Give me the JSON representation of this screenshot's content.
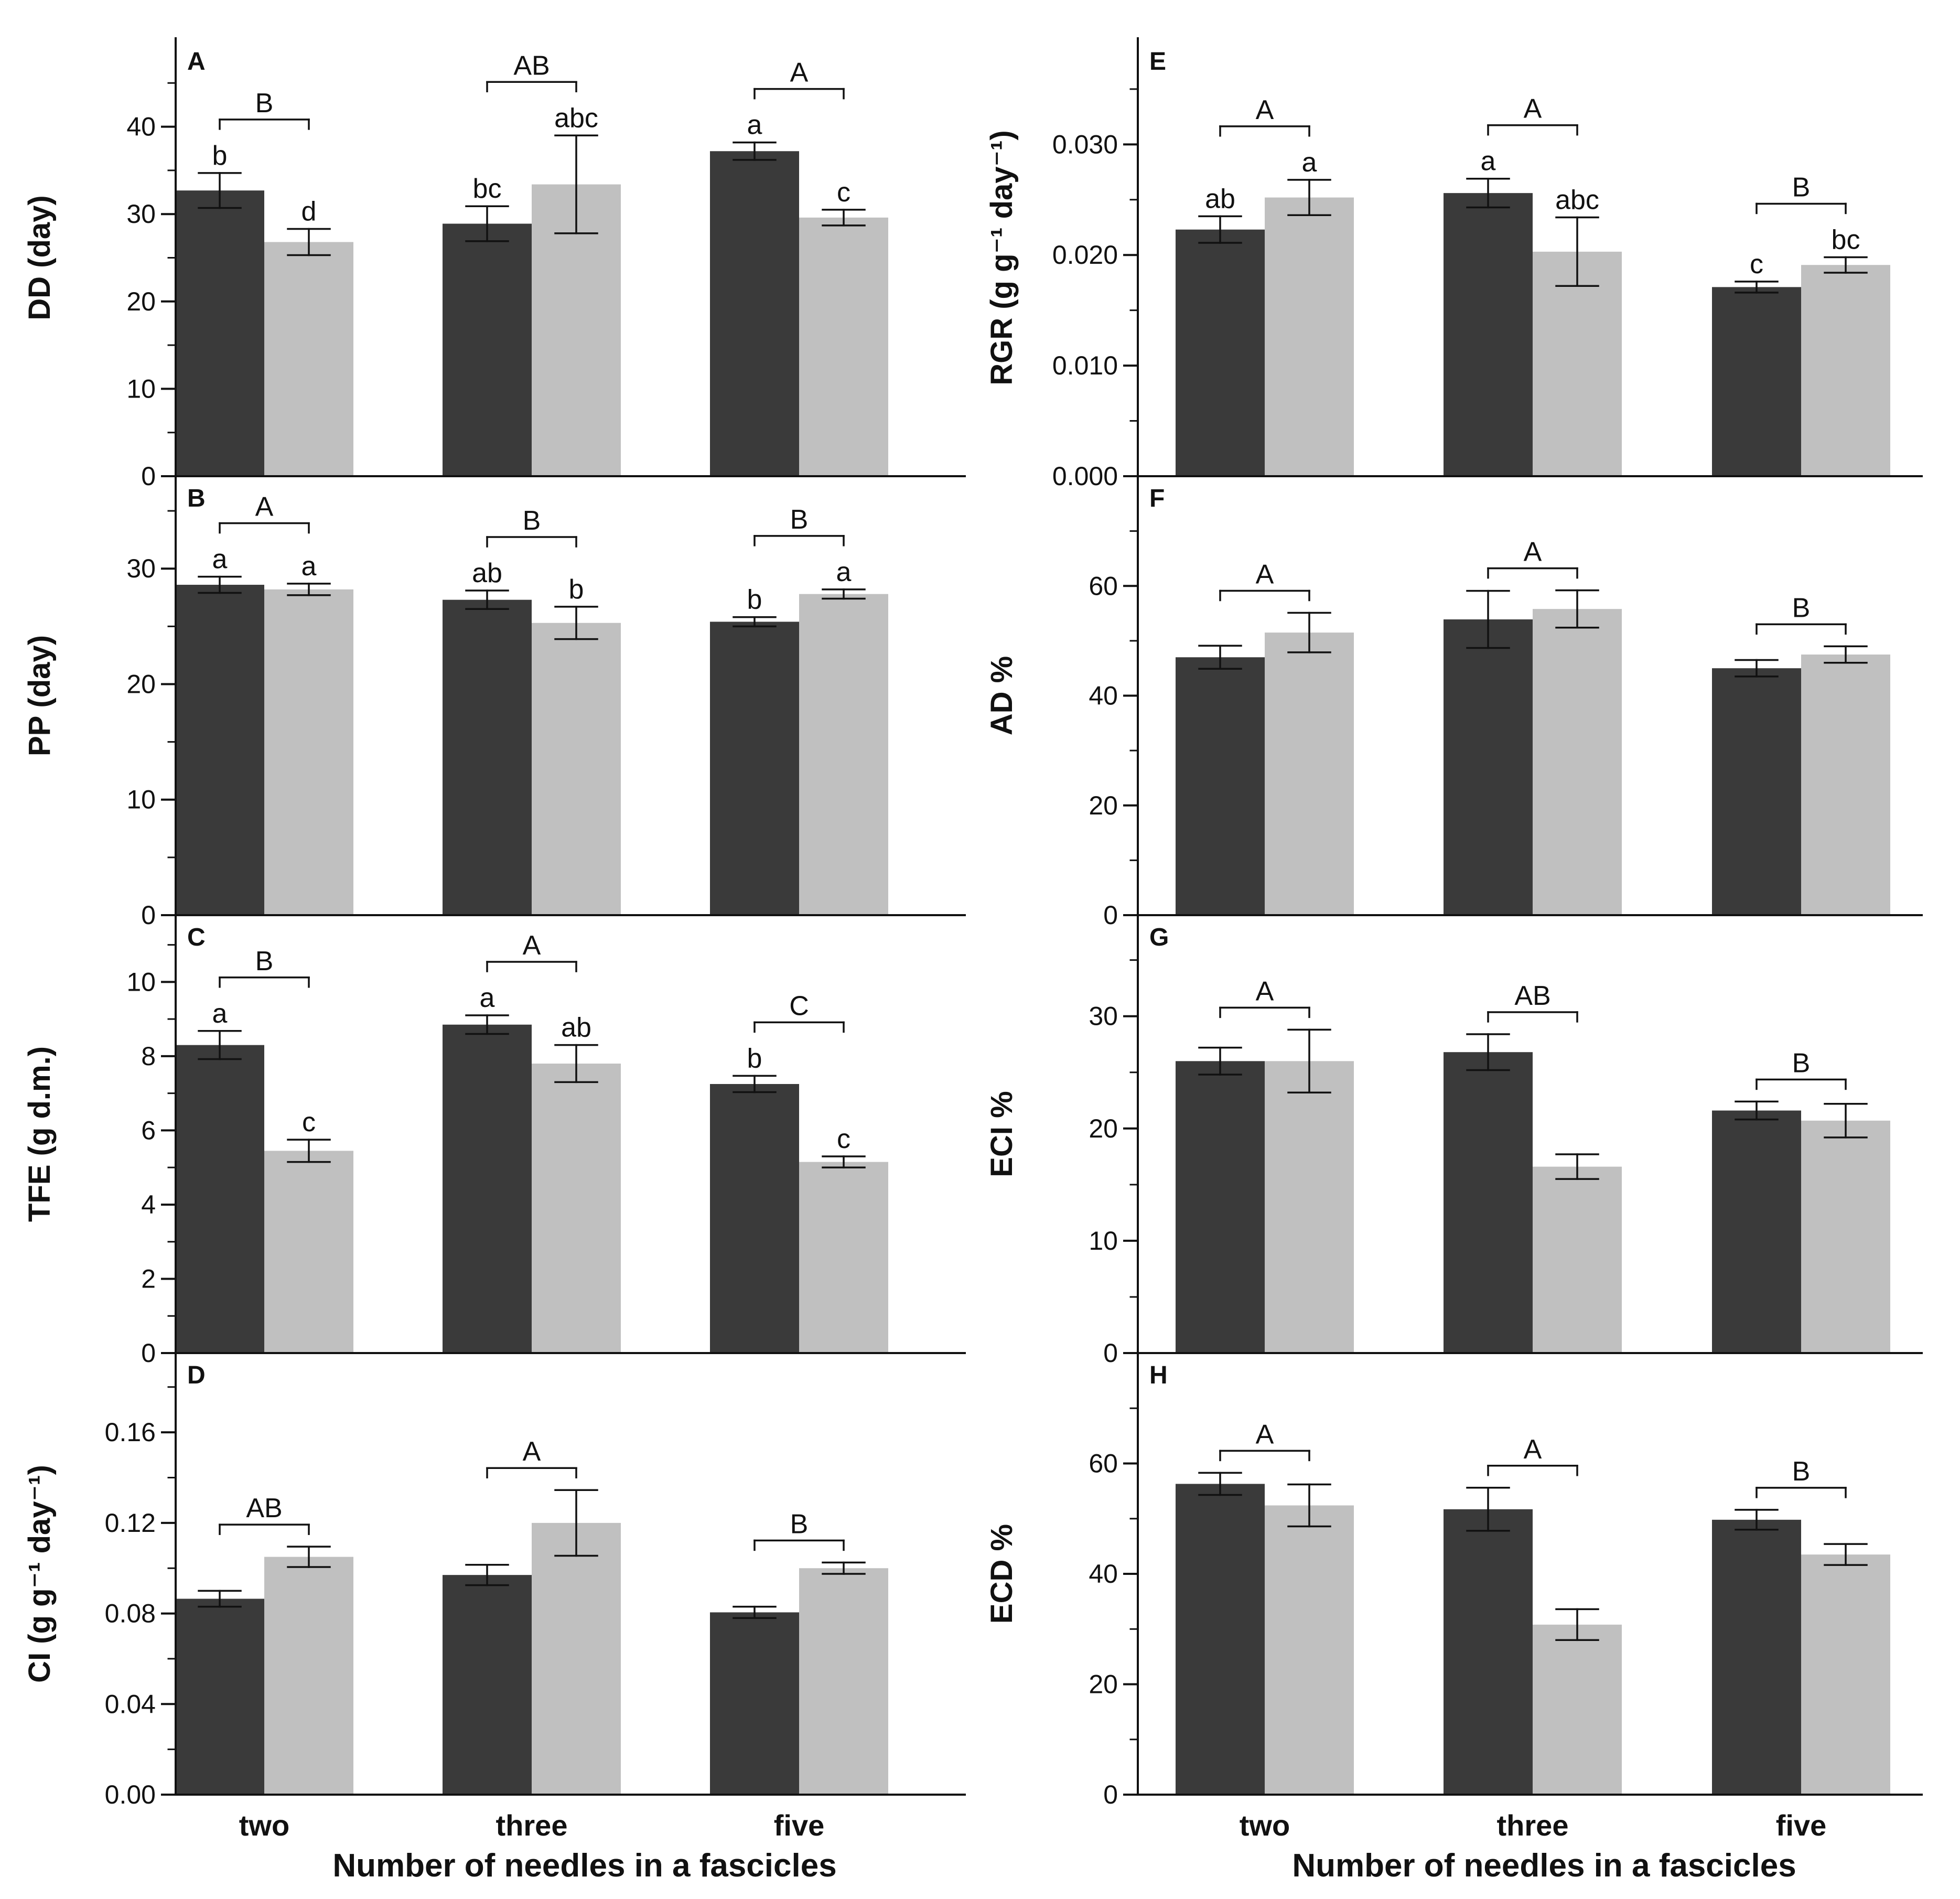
{
  "colors": {
    "series_dark": "#3a3a3a",
    "series_light": "#c0c0c0",
    "axis": "#111111"
  },
  "x_axis_title": "Number of needles in a fascicles",
  "chart_data": [
    {
      "id": "A",
      "type": "bar",
      "panel_label": "A",
      "ylabel": "DD (day)",
      "categories": [
        "two",
        "three",
        "five"
      ],
      "ylim": [
        0,
        50
      ],
      "yticks": [
        "0",
        "10",
        "20",
        "30",
        "40"
      ],
      "ytick_values": [
        0,
        10,
        20,
        30,
        40
      ],
      "minor_step": 5,
      "series": [
        {
          "name": "dark",
          "values": [
            32.7,
            28.9,
            37.2
          ],
          "errors": [
            2.0,
            2.0,
            1.0
          ],
          "letters": [
            "b",
            "bc",
            "a"
          ]
        },
        {
          "name": "light",
          "values": [
            26.8,
            33.4,
            29.6
          ],
          "errors": [
            1.5,
            5.6,
            0.9
          ],
          "letters": [
            "d",
            "abc",
            "c"
          ]
        }
      ],
      "group_letters": [
        "B",
        "AB",
        "A"
      ]
    },
    {
      "id": "B",
      "type": "bar",
      "panel_label": "B",
      "ylabel": "PP (day)",
      "categories": [
        "two",
        "three",
        "five"
      ],
      "ylim": [
        0,
        38
      ],
      "yticks": [
        "0",
        "10",
        "20",
        "30"
      ],
      "ytick_values": [
        0,
        10,
        20,
        30
      ],
      "minor_step": 5,
      "series": [
        {
          "name": "dark",
          "values": [
            28.6,
            27.3,
            25.4
          ],
          "errors": [
            0.7,
            0.8,
            0.4
          ],
          "letters": [
            "a",
            "ab",
            "b"
          ]
        },
        {
          "name": "light",
          "values": [
            28.2,
            25.3,
            27.8
          ],
          "errors": [
            0.5,
            1.4,
            0.4
          ],
          "letters": [
            "a",
            "b",
            "a"
          ]
        }
      ],
      "group_letters": [
        "A",
        "B",
        "B"
      ]
    },
    {
      "id": "C",
      "type": "bar",
      "panel_label": "C",
      "ylabel": "TFE (g d.m.)",
      "categories": [
        "two",
        "three",
        "five"
      ],
      "ylim": [
        0,
        11.8
      ],
      "yticks": [
        "0",
        "2",
        "4",
        "6",
        "8",
        "10"
      ],
      "ytick_values": [
        0,
        2,
        4,
        6,
        8,
        10
      ],
      "minor_step": 1,
      "series": [
        {
          "name": "dark",
          "values": [
            8.3,
            8.85,
            7.25
          ],
          "errors": [
            0.38,
            0.25,
            0.22
          ],
          "letters": [
            "a",
            "a",
            "b"
          ]
        },
        {
          "name": "light",
          "values": [
            5.45,
            7.8,
            5.15
          ],
          "errors": [
            0.3,
            0.5,
            0.15
          ],
          "letters": [
            "c",
            "ab",
            "c"
          ]
        }
      ],
      "group_letters": [
        "B",
        "A",
        "C"
      ]
    },
    {
      "id": "D",
      "type": "bar",
      "panel_label": "D",
      "ylabel": "CI (g g⁻¹ day⁻¹)",
      "categories": [
        "two",
        "three",
        "five"
      ],
      "ylim": [
        0,
        0.195
      ],
      "yticks": [
        "0.00",
        "0.04",
        "0.08",
        "0.12",
        "0.16"
      ],
      "ytick_values": [
        0,
        0.04,
        0.08,
        0.12,
        0.16
      ],
      "minor_step": 0.02,
      "series": [
        {
          "name": "dark",
          "values": [
            0.0865,
            0.097,
            0.0805
          ],
          "errors": [
            0.0035,
            0.0045,
            0.0025
          ],
          "letters": [
            "",
            "",
            ""
          ]
        },
        {
          "name": "light",
          "values": [
            0.105,
            0.12,
            0.1
          ],
          "errors": [
            0.0045,
            0.0145,
            0.0025
          ],
          "letters": [
            "",
            "",
            ""
          ]
        }
      ],
      "group_letters": [
        "AB",
        "A",
        "B"
      ]
    },
    {
      "id": "E",
      "type": "bar",
      "panel_label": "E",
      "ylabel": "RGR (g g⁻¹ day⁻¹)",
      "categories": [
        "two",
        "three",
        "five"
      ],
      "ylim": [
        0,
        0.0395
      ],
      "yticks": [
        "0.000",
        "0.010",
        "0.020",
        "0.030"
      ],
      "ytick_values": [
        0,
        0.01,
        0.02,
        0.03
      ],
      "minor_step": 0.005,
      "series": [
        {
          "name": "dark",
          "values": [
            0.0223,
            0.0256,
            0.0171
          ],
          "errors": [
            0.0012,
            0.0013,
            0.0005
          ],
          "letters": [
            "ab",
            "a",
            "c"
          ]
        },
        {
          "name": "light",
          "values": [
            0.0252,
            0.0203,
            0.0191
          ],
          "errors": [
            0.0016,
            0.0031,
            0.0007
          ],
          "letters": [
            "a",
            "abc",
            "bc"
          ]
        }
      ],
      "group_letters": [
        "A",
        "A",
        "B"
      ]
    },
    {
      "id": "F",
      "type": "bar",
      "panel_label": "F",
      "ylabel": "AD %",
      "categories": [
        "two",
        "three",
        "five"
      ],
      "ylim": [
        0,
        80
      ],
      "yticks": [
        "0",
        "20",
        "40",
        "60"
      ],
      "ytick_values": [
        0,
        20,
        40,
        60
      ],
      "minor_step": 10,
      "series": [
        {
          "name": "dark",
          "values": [
            47,
            53.9,
            45
          ],
          "errors": [
            2.1,
            5.2,
            1.5
          ],
          "letters": [
            "",
            "",
            ""
          ]
        },
        {
          "name": "light",
          "values": [
            51.5,
            55.8,
            47.5
          ],
          "errors": [
            3.6,
            3.4,
            1.5
          ],
          "letters": [
            "",
            "",
            ""
          ]
        }
      ],
      "group_letters": [
        "A",
        "A",
        "B"
      ]
    },
    {
      "id": "G",
      "type": "bar",
      "panel_label": "G",
      "ylabel": "ECI %",
      "categories": [
        "two",
        "three",
        "five"
      ],
      "ylim": [
        0,
        39
      ],
      "yticks": [
        "0",
        "10",
        "20",
        "30"
      ],
      "ytick_values": [
        0,
        10,
        20,
        30
      ],
      "minor_step": 5,
      "series": [
        {
          "name": "dark",
          "values": [
            26,
            26.8,
            21.6
          ],
          "errors": [
            1.2,
            1.6,
            0.8
          ],
          "letters": [
            "",
            "",
            ""
          ]
        },
        {
          "name": "light",
          "values": [
            26,
            16.6,
            20.7
          ],
          "errors": [
            2.8,
            1.1,
            1.5
          ],
          "letters": [
            "",
            "",
            ""
          ]
        }
      ],
      "group_letters": [
        "A",
        "AB",
        "B"
      ]
    },
    {
      "id": "H",
      "type": "bar",
      "panel_label": "H",
      "ylabel": "ECD %",
      "categories": [
        "two",
        "three",
        "five"
      ],
      "ylim": [
        0,
        80
      ],
      "yticks": [
        "0",
        "20",
        "40",
        "60"
      ],
      "ytick_values": [
        0,
        20,
        40,
        60
      ],
      "minor_step": 10,
      "series": [
        {
          "name": "dark",
          "values": [
            56.3,
            51.7,
            49.8
          ],
          "errors": [
            2.0,
            3.9,
            1.8
          ],
          "letters": [
            "",
            "",
            ""
          ]
        },
        {
          "name": "light",
          "values": [
            52.4,
            30.8,
            43.5
          ],
          "errors": [
            3.8,
            2.8,
            1.9
          ],
          "letters": [
            "",
            "",
            ""
          ]
        }
      ],
      "group_letters": [
        "A",
        "A",
        "B"
      ]
    }
  ]
}
